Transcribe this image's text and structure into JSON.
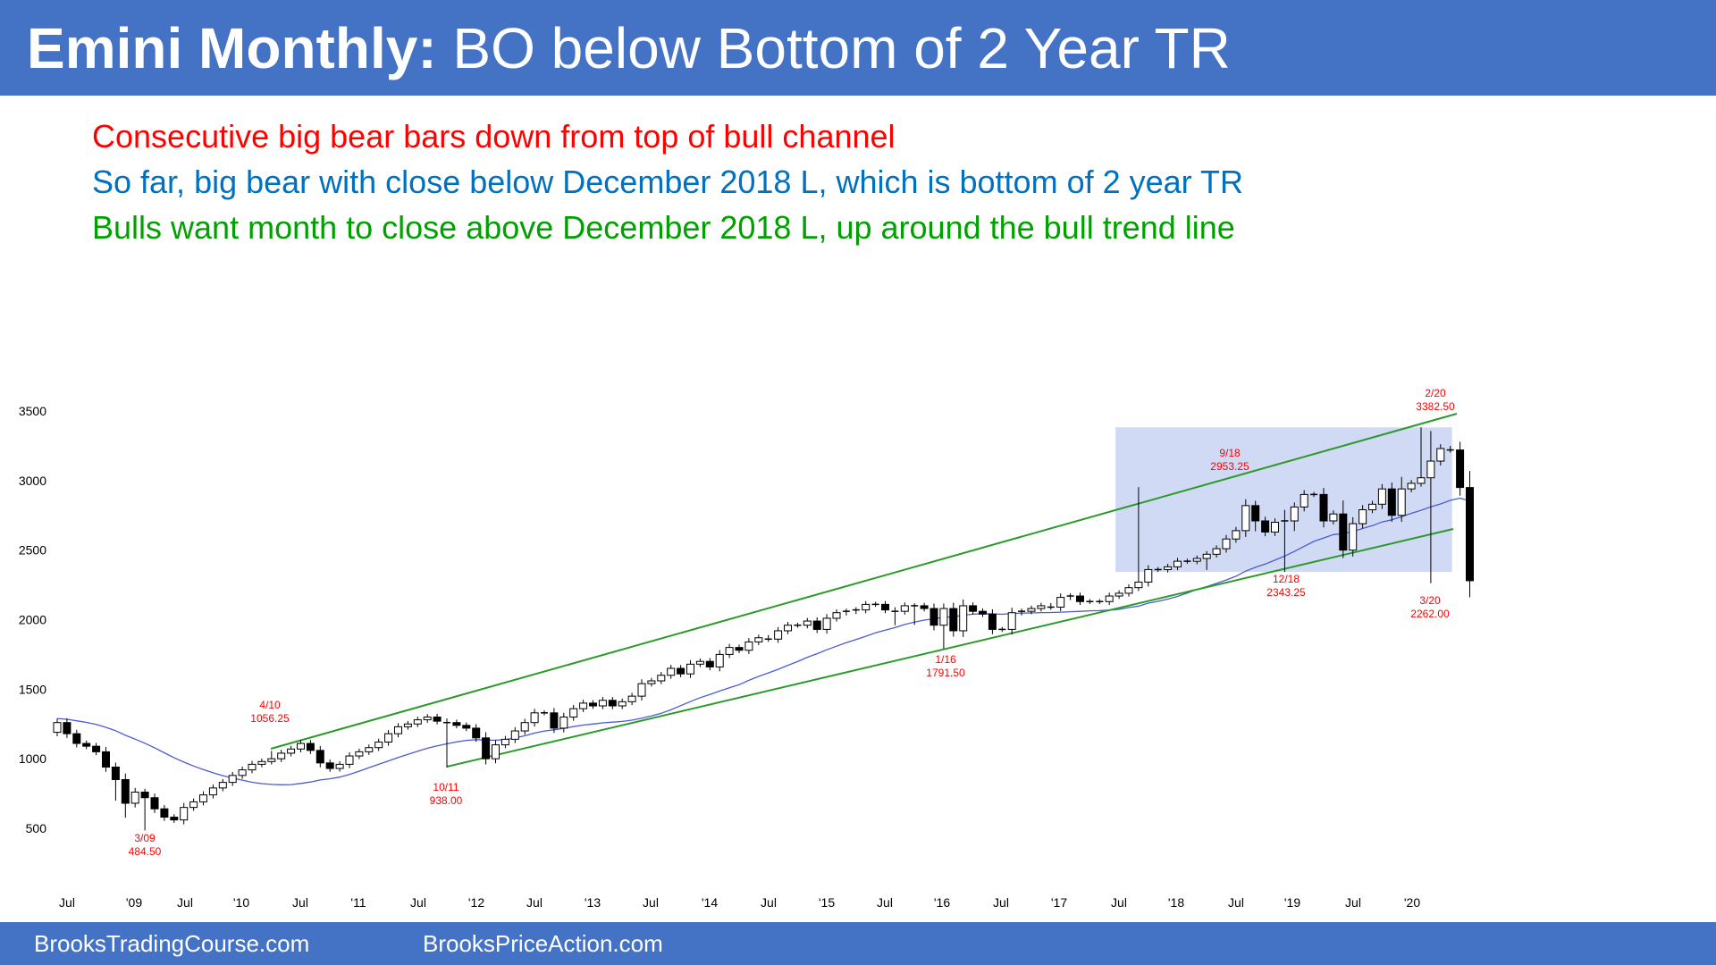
{
  "header": {
    "title_bold": "Emini Monthly:",
    "title_rest": "BO below Bottom of 2 Year TR"
  },
  "bullets": [
    {
      "text": "Consecutive big bear bars down from top of bull channel",
      "color": "#ff0000"
    },
    {
      "text": "So far, big bear with close below December 2018 L, which is bottom of 2 year TR",
      "color": "#0070c0"
    },
    {
      "text": "Bulls want month to close above December 2018 L, up around the bull trend line",
      "color": "#00a000"
    }
  ],
  "footer": {
    "left": "BrooksTradingCourse.com",
    "right": "BrooksPriceAction.com"
  },
  "chart_data": {
    "type": "candlestick",
    "ylim": [
      250,
      3700
    ],
    "y_ticks": [
      500,
      1000,
      1500,
      2000,
      2500,
      3000,
      3500
    ],
    "x_tick_labels": [
      "Jul",
      "'09",
      "Jul",
      "'10",
      "Jul",
      "'11",
      "Jul",
      "'12",
      "Jul",
      "'13",
      "Jul",
      "'14",
      "Jul",
      "'15",
      "Jul",
      "'16",
      "Jul",
      "'17",
      "Jul",
      "'18",
      "Jul",
      "'19",
      "Jul",
      "'20"
    ],
    "closes": [
      1260,
      1180,
      1110,
      1090,
      1050,
      940,
      850,
      680,
      760,
      720,
      640,
      580,
      560,
      650,
      690,
      740,
      790,
      830,
      880,
      920,
      960,
      980,
      1000,
      1040,
      1070,
      1110,
      1060,
      970,
      930,
      960,
      1020,
      1050,
      1080,
      1120,
      1180,
      1230,
      1250,
      1280,
      1300,
      1270,
      1260,
      1240,
      1220,
      1150,
      1000,
      1100,
      1140,
      1200,
      1260,
      1330,
      1330,
      1220,
      1300,
      1360,
      1400,
      1380,
      1420,
      1380,
      1410,
      1450,
      1540,
      1560,
      1600,
      1650,
      1610,
      1680,
      1700,
      1660,
      1750,
      1800,
      1780,
      1840,
      1870,
      1860,
      1920,
      1960,
      1960,
      1990,
      1930,
      2010,
      2050,
      2060,
      2070,
      2110,
      2110,
      2070,
      2060,
      2100,
      2100,
      2080,
      1960,
      2080,
      1920,
      2100,
      2060,
      2040,
      1930,
      1930,
      2050,
      2060,
      2080,
      2100,
      2090,
      2160,
      2170,
      2130,
      2130,
      2130,
      2170,
      2190,
      2230,
      2270,
      2360,
      2360,
      2380,
      2420,
      2420,
      2440,
      2470,
      2510,
      2580,
      2640,
      2820,
      2710,
      2630,
      2700,
      2710,
      2810,
      2900,
      2900,
      2710,
      2760,
      2500,
      2690,
      2790,
      2830,
      2940,
      2750,
      2940,
      2980,
      3020,
      3140,
      3230,
      3220,
      2950,
      2280
    ],
    "annotations": [
      {
        "label": "3/09",
        "value": "484.50"
      },
      {
        "label": "4/10",
        "value": "1056.25"
      },
      {
        "label": "10/11",
        "value": "938.00"
      },
      {
        "label": "1/16",
        "value": "1791.50"
      },
      {
        "label": "9/18",
        "value": "2953.25"
      },
      {
        "label": "12/18",
        "value": "2343.25"
      },
      {
        "label": "2/20",
        "value": "3382.50"
      },
      {
        "label": "3/20",
        "value": "2262.00"
      }
    ],
    "trading_range": {
      "low": 2343.25,
      "high": 3382.5,
      "color": "#c9d4f2"
    },
    "bull_channel_color": "#2a9a2a",
    "moving_average_color": "#4a5bd4",
    "annotation_color": "#ff0000"
  }
}
